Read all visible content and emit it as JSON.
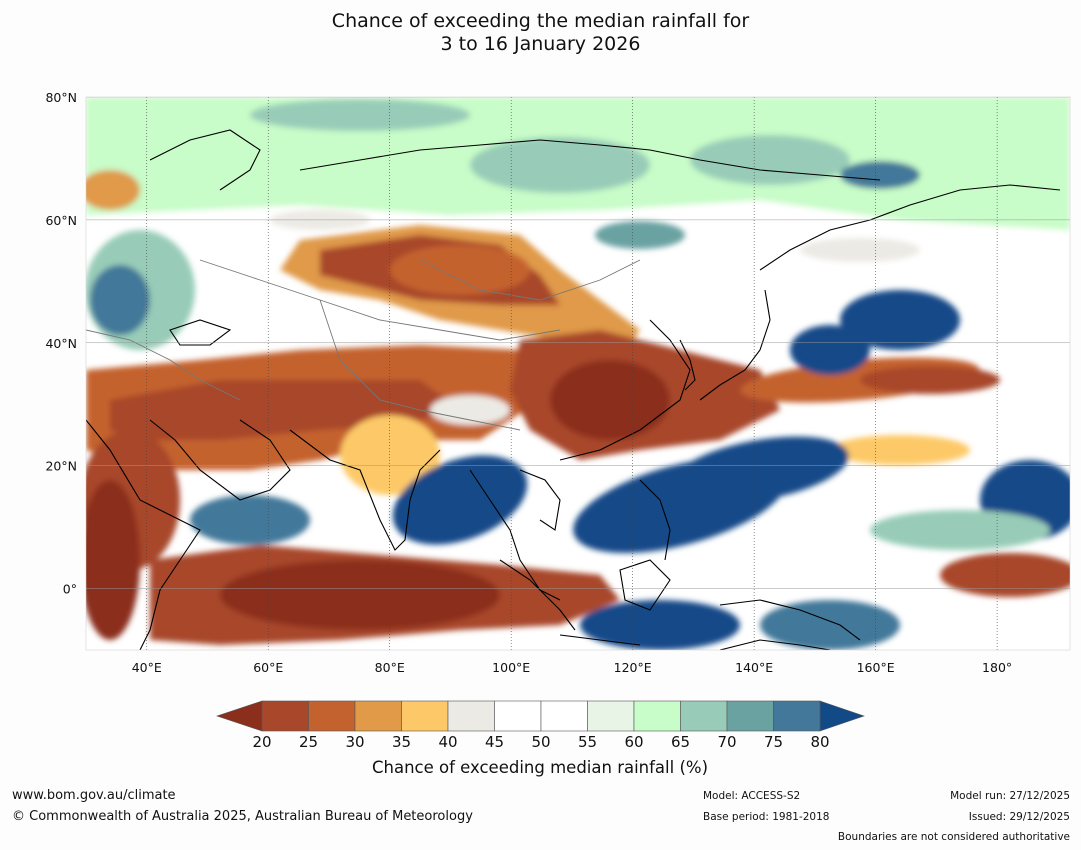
{
  "title": {
    "line1": "Chance of exceeding the median rainfall for",
    "line2": "3 to 16 January 2026"
  },
  "map": {
    "lat_labels": [
      "80°N",
      "60°N",
      "40°N",
      "20°N",
      "0°"
    ],
    "lon_labels": [
      "40°E",
      "60°E",
      "80°E",
      "100°E",
      "120°E",
      "140°E",
      "160°E",
      "180°"
    ],
    "lat_range": [
      -10,
      80
    ],
    "lon_range": [
      30,
      192
    ],
    "lat_ticks": [
      80,
      60,
      40,
      20,
      0
    ],
    "lon_ticks": [
      40,
      60,
      80,
      100,
      120,
      140,
      160,
      180
    ]
  },
  "colorbar": {
    "ticks": [
      "20",
      "25",
      "30",
      "35",
      "40",
      "45",
      "50",
      "55",
      "60",
      "65",
      "70",
      "75",
      "80"
    ],
    "colors": [
      "#a8472a",
      "#c4622f",
      "#e09a48",
      "#fdc968",
      "#eceae4",
      "#ffffff",
      "#ffffff",
      "#e8f5e6",
      "#c8fcc8",
      "#98ccb8",
      "#6aa2a2",
      "#43789a"
    ],
    "under_color": "#8b2e1c",
    "over_color": "#124a88",
    "label": "Chance of exceeding median rainfall (%)"
  },
  "palette": {
    "very_dry": "#8b2e1c",
    "dry": "#a8472a",
    "dry_mid": "#c4622f",
    "dry_light": "#e09a48",
    "dry_pale": "#fdc968",
    "neutral": "#eceae4",
    "wet_pale": "#c8fcc8",
    "wet_light": "#98ccb8",
    "wet_mid": "#6aa2a2",
    "wet": "#43789a",
    "very_wet": "#124a88"
  },
  "footer": {
    "website": "www.bom.gov.au/climate",
    "copyright": "© Commonwealth of Australia 2025, Australian Bureau of Meteorology",
    "model": "Model: ACCESS-S2",
    "base_period": "Base period: 1981-2018",
    "model_run": "Model run: 27/12/2025",
    "issued": "Issued: 29/12/2025",
    "disclaimer": "Boundaries are not considered authoritative"
  }
}
